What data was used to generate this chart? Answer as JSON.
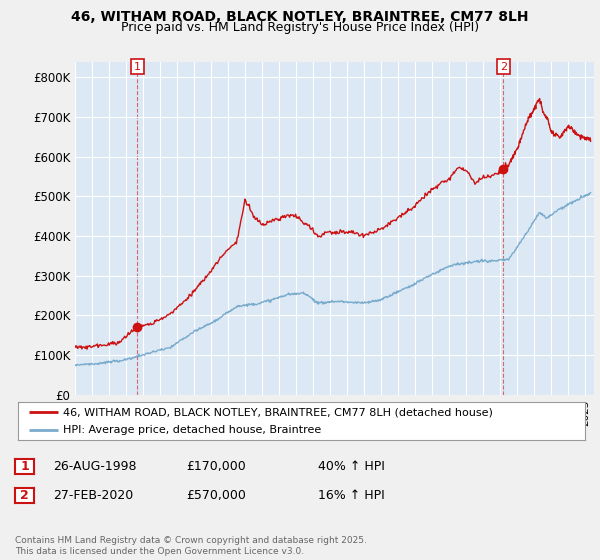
{
  "title1": "46, WITHAM ROAD, BLACK NOTLEY, BRAINTREE, CM77 8LH",
  "title2": "Price paid vs. HM Land Registry's House Price Index (HPI)",
  "ylabel_ticks": [
    "£0",
    "£100K",
    "£200K",
    "£300K",
    "£400K",
    "£500K",
    "£600K",
    "£700K",
    "£800K"
  ],
  "ytick_vals": [
    0,
    100000,
    200000,
    300000,
    400000,
    500000,
    600000,
    700000,
    800000
  ],
  "ylim": [
    0,
    840000
  ],
  "xlim_start": 1995.0,
  "xlim_end": 2025.5,
  "plot_bg_color": "#dce9f5",
  "fig_bg_color": "#f0f0f0",
  "red_color": "#cc1111",
  "blue_color": "#7aabcc",
  "marker1_x": 1998.66,
  "marker1_y": 170000,
  "marker2_x": 2020.17,
  "marker2_y": 570000,
  "legend_line1": "46, WITHAM ROAD, BLACK NOTLEY, BRAINTREE, CM77 8LH (detached house)",
  "legend_line2": "HPI: Average price, detached house, Braintree",
  "table_rows": [
    [
      "1",
      "26-AUG-1998",
      "£170,000",
      "40% ↑ HPI"
    ],
    [
      "2",
      "27-FEB-2020",
      "£570,000",
      "16% ↑ HPI"
    ]
  ],
  "footer": "Contains HM Land Registry data © Crown copyright and database right 2025.\nThis data is licensed under the Open Government Licence v3.0.",
  "hpi_segments": [
    [
      1995.0,
      75000
    ],
    [
      1996.5,
      80000
    ],
    [
      1998.0,
      90000
    ],
    [
      1999.0,
      100000
    ],
    [
      2000.5,
      118000
    ],
    [
      2002.0,
      160000
    ],
    [
      2003.5,
      195000
    ],
    [
      2004.5,
      225000
    ],
    [
      2005.5,
      230000
    ],
    [
      2006.5,
      240000
    ],
    [
      2007.5,
      255000
    ],
    [
      2008.5,
      260000
    ],
    [
      2009.3,
      235000
    ],
    [
      2010.0,
      240000
    ],
    [
      2011.0,
      240000
    ],
    [
      2012.0,
      238000
    ],
    [
      2013.0,
      248000
    ],
    [
      2014.0,
      268000
    ],
    [
      2015.0,
      290000
    ],
    [
      2016.0,
      315000
    ],
    [
      2017.0,
      335000
    ],
    [
      2018.0,
      340000
    ],
    [
      2019.0,
      345000
    ],
    [
      2020.0,
      345000
    ],
    [
      2020.5,
      350000
    ],
    [
      2021.5,
      415000
    ],
    [
      2022.3,
      470000
    ],
    [
      2022.7,
      455000
    ],
    [
      2023.5,
      480000
    ],
    [
      2024.0,
      490000
    ],
    [
      2025.3,
      520000
    ]
  ],
  "red_segments_pre": [
    [
      1995.0,
      120000
    ],
    [
      1996.5,
      125000
    ],
    [
      1997.5,
      130000
    ],
    [
      1998.66,
      170000
    ],
    [
      1999.5,
      178000
    ],
    [
      2000.5,
      200000
    ],
    [
      2001.5,
      235000
    ],
    [
      2002.5,
      285000
    ],
    [
      2003.5,
      340000
    ],
    [
      2004.5,
      385000
    ],
    [
      2005.0,
      490000
    ],
    [
      2005.5,
      450000
    ],
    [
      2006.0,
      430000
    ],
    [
      2006.5,
      440000
    ],
    [
      2007.0,
      445000
    ],
    [
      2007.5,
      455000
    ],
    [
      2008.0,
      450000
    ],
    [
      2008.5,
      435000
    ],
    [
      2009.3,
      400000
    ],
    [
      2010.0,
      410000
    ],
    [
      2011.0,
      410000
    ],
    [
      2012.0,
      405000
    ],
    [
      2013.0,
      420000
    ],
    [
      2014.0,
      450000
    ],
    [
      2015.0,
      480000
    ],
    [
      2016.0,
      520000
    ],
    [
      2017.0,
      550000
    ],
    [
      2017.5,
      580000
    ],
    [
      2018.0,
      570000
    ],
    [
      2018.5,
      540000
    ],
    [
      2019.0,
      555000
    ],
    [
      2019.5,
      560000
    ],
    [
      2020.17,
      570000
    ]
  ],
  "red_segments_post": [
    [
      2020.17,
      570000
    ],
    [
      2020.5,
      580000
    ],
    [
      2021.0,
      620000
    ],
    [
      2021.5,
      680000
    ],
    [
      2022.0,
      720000
    ],
    [
      2022.3,
      745000
    ],
    [
      2022.5,
      710000
    ],
    [
      2022.8,
      690000
    ],
    [
      2023.0,
      660000
    ],
    [
      2023.5,
      650000
    ],
    [
      2024.0,
      680000
    ],
    [
      2024.5,
      660000
    ],
    [
      2025.0,
      650000
    ],
    [
      2025.3,
      645000
    ]
  ]
}
